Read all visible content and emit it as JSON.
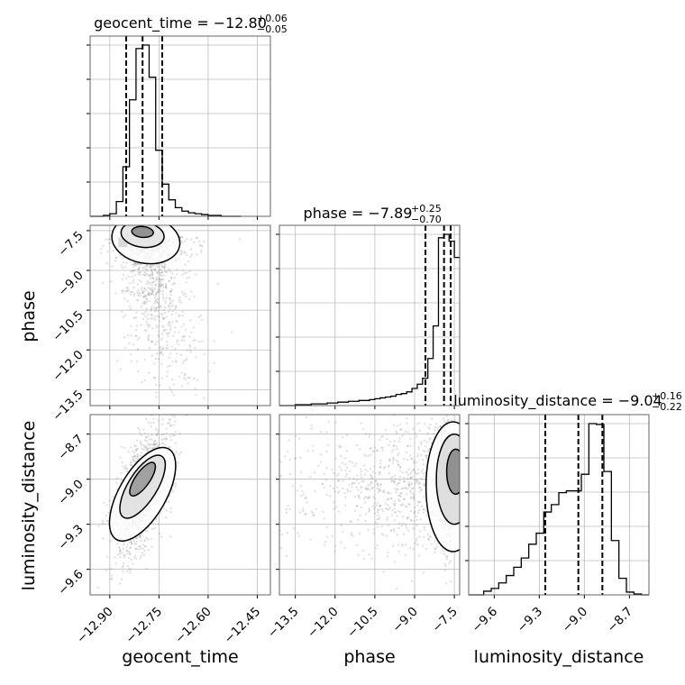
{
  "chart_data": {
    "type": "corner",
    "parameters": [
      "geocent_time",
      "phase",
      "luminosity_distance"
    ],
    "axis_labels": {
      "x": [
        "geocent_time",
        "phase",
        "luminosity_distance"
      ],
      "y": [
        "phase",
        "luminosity_distance"
      ]
    },
    "titles": [
      {
        "main": "geocent_time = −12.80",
        "plus": "+0.06",
        "minus": "−0.05"
      },
      {
        "main": "phase = −7.89",
        "plus": "+0.25",
        "minus": "−0.70"
      },
      {
        "main": "luminosity_distance = −9.04",
        "plus": "+0.16",
        "minus": "−0.22"
      }
    ],
    "ranges": {
      "geocent_time": [
        -12.96,
        -12.41
      ],
      "phase": [
        -14.1,
        -7.3
      ],
      "luminosity_distance": [
        -9.77,
        -8.57
      ]
    },
    "ticks": {
      "geocent_time": [
        -12.9,
        -12.75,
        -12.6,
        -12.45
      ],
      "phase": [
        -13.5,
        -12.0,
        -10.5,
        -9.0,
        -7.5
      ],
      "luminosity_distance": [
        -9.6,
        -9.3,
        -9.0,
        -8.7
      ]
    },
    "tick_labels": {
      "geocent_time": [
        "−12.90",
        "−12.75",
        "−12.60",
        "−12.45"
      ],
      "phase": [
        "−13.5",
        "−12.0",
        "−10.5",
        "−9.0",
        "−7.5"
      ],
      "luminosity_distance": [
        "−9.6",
        "−9.3",
        "−9.0",
        "−8.7"
      ]
    },
    "quantiles": {
      "geocent_time": [
        -12.85,
        -12.8,
        -12.74
      ],
      "phase": [
        -8.59,
        -7.89,
        -7.64
      ],
      "luminosity_distance": [
        -9.26,
        -9.04,
        -8.88
      ]
    },
    "histograms": {
      "geocent_time": {
        "bin_edges": [
          -12.96,
          -12.94,
          -12.92,
          -12.9,
          -12.88,
          -12.86,
          -12.84,
          -12.82,
          -12.8,
          -12.78,
          -12.76,
          -12.74,
          -12.72,
          -12.7,
          -12.68,
          -12.66,
          -12.64,
          -12.62,
          -12.6,
          -12.58,
          -12.56,
          -12.54,
          -12.52,
          -12.5
        ],
        "counts": [
          0,
          0,
          1,
          3,
          17,
          57,
          134,
          193,
          197,
          160,
          76,
          37,
          19,
          10,
          6,
          4,
          3,
          2,
          1,
          1,
          0,
          0,
          0
        ]
      },
      "phase": {
        "bin_edges": [
          -14.1,
          -13.9,
          -13.7,
          -13.5,
          -13.3,
          -13.1,
          -12.9,
          -12.7,
          -12.5,
          -12.3,
          -12.1,
          -11.9,
          -11.7,
          -11.5,
          -11.3,
          -11.1,
          -10.9,
          -10.7,
          -10.5,
          -10.3,
          -10.1,
          -9.9,
          -9.7,
          -9.5,
          -9.3,
          -9.1,
          -8.9,
          -8.7,
          -8.5,
          -8.3,
          -8.1,
          -7.9,
          -7.7,
          -7.5,
          -7.3
        ],
        "counts": [
          0,
          0,
          0,
          1,
          1,
          1,
          2,
          2,
          2,
          3,
          3,
          4,
          4,
          5,
          5,
          6,
          6,
          7,
          8,
          9,
          10,
          11,
          13,
          14,
          16,
          20,
          25,
          32,
          55,
          93,
          196,
          200,
          192,
          173
        ]
      },
      "luminosity_distance": {
        "bin_edges": [
          -9.77,
          -9.72,
          -9.67,
          -9.62,
          -9.57,
          -9.52,
          -9.47,
          -9.42,
          -9.37,
          -9.32,
          -9.27,
          -9.22,
          -9.17,
          -9.12,
          -9.07,
          -9.02,
          -8.97,
          -8.92,
          -8.87,
          -8.82,
          -8.77,
          -8.72,
          -8.67,
          -8.62,
          -8.57
        ],
        "counts": [
          0,
          0,
          4,
          7,
          13,
          21,
          30,
          40,
          55,
          67,
          90,
          98,
          111,
          113,
          113,
          131,
          186,
          185,
          134,
          59,
          18,
          3,
          1,
          0
        ]
      }
    },
    "contour_levels": 3,
    "grid": true
  }
}
